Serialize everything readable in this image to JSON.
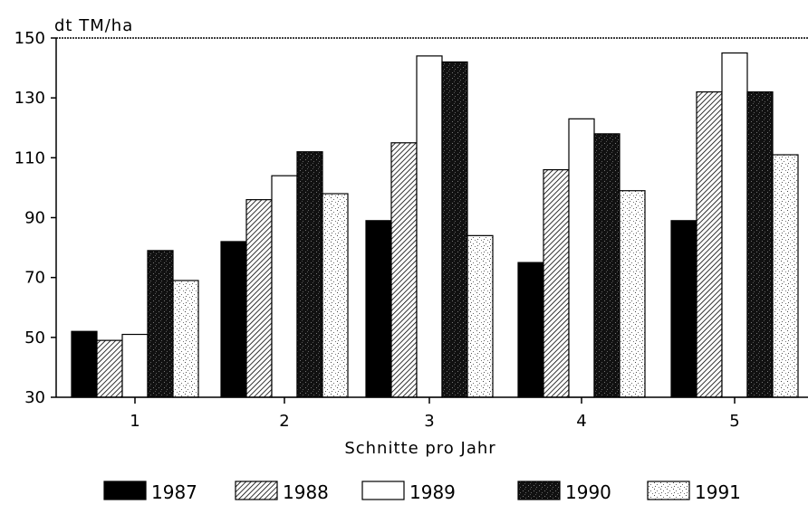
{
  "chart_data": {
    "type": "bar",
    "ylabel": "dt TM/ha",
    "xlabel": "Schnitte pro Jahr",
    "categories": [
      "1",
      "2",
      "3",
      "4",
      "5"
    ],
    "ylim": [
      30,
      150
    ],
    "yticks": [
      30,
      50,
      70,
      90,
      110,
      130,
      150
    ],
    "legend_position": "bottom",
    "grid": false,
    "series": [
      {
        "name": "1987",
        "pattern": "solid-black",
        "values": [
          52,
          82,
          89,
          75,
          89
        ]
      },
      {
        "name": "1988",
        "pattern": "hatched",
        "values": [
          49,
          96,
          115,
          106,
          132
        ]
      },
      {
        "name": "1989",
        "pattern": "white",
        "values": [
          51,
          104,
          144,
          123,
          145
        ]
      },
      {
        "name": "1990",
        "pattern": "dark-stipple",
        "values": [
          79,
          112,
          142,
          118,
          132
        ]
      },
      {
        "name": "1991",
        "pattern": "light-stipple",
        "values": [
          69,
          98,
          84,
          99,
          111
        ]
      }
    ]
  }
}
